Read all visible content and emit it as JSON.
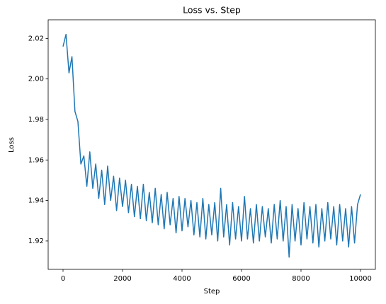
{
  "chart_data": {
    "type": "line",
    "title": "Loss vs. Step",
    "x_label": "Step",
    "y_label": "Loss",
    "color": "#1f77b4",
    "x": [
      0,
      100,
      200,
      300,
      400,
      500,
      600,
      700,
      800,
      900,
      1000,
      1100,
      1200,
      1300,
      1400,
      1500,
      1600,
      1700,
      1800,
      1900,
      2000,
      2100,
      2200,
      2300,
      2400,
      2500,
      2600,
      2700,
      2800,
      2900,
      3000,
      3100,
      3200,
      3300,
      3400,
      3500,
      3600,
      3700,
      3800,
      3900,
      4000,
      4100,
      4200,
      4300,
      4400,
      4500,
      4600,
      4700,
      4800,
      4900,
      5000,
      5100,
      5200,
      5300,
      5400,
      5500,
      5600,
      5700,
      5800,
      5900,
      6000,
      6100,
      6200,
      6300,
      6400,
      6500,
      6600,
      6700,
      6800,
      6900,
      7000,
      7100,
      7200,
      7300,
      7400,
      7500,
      7600,
      7700,
      7800,
      7900,
      8000,
      8100,
      8200,
      8300,
      8400,
      8500,
      8600,
      8700,
      8800,
      8900,
      9000,
      9100,
      9200,
      9300,
      9400,
      9500,
      9600,
      9700,
      9800,
      9900,
      10000
    ],
    "values": [
      2.016,
      2.022,
      2.003,
      2.011,
      1.984,
      1.979,
      1.958,
      1.962,
      1.947,
      1.964,
      1.946,
      1.958,
      1.941,
      1.955,
      1.938,
      1.957,
      1.94,
      1.952,
      1.935,
      1.951,
      1.937,
      1.95,
      1.934,
      1.948,
      1.932,
      1.947,
      1.931,
      1.948,
      1.93,
      1.944,
      1.929,
      1.946,
      1.928,
      1.943,
      1.926,
      1.944,
      1.928,
      1.941,
      1.924,
      1.942,
      1.925,
      1.941,
      1.927,
      1.94,
      1.923,
      1.939,
      1.922,
      1.941,
      1.921,
      1.938,
      1.923,
      1.939,
      1.92,
      1.946,
      1.922,
      1.938,
      1.918,
      1.939,
      1.921,
      1.937,
      1.92,
      1.942,
      1.921,
      1.936,
      1.919,
      1.938,
      1.92,
      1.937,
      1.922,
      1.936,
      1.919,
      1.938,
      1.921,
      1.94,
      1.92,
      1.937,
      1.912,
      1.938,
      1.92,
      1.936,
      1.918,
      1.939,
      1.921,
      1.937,
      1.919,
      1.938,
      1.917,
      1.936,
      1.92,
      1.939,
      1.921,
      1.937,
      1.918,
      1.938,
      1.92,
      1.936,
      1.917,
      1.937,
      1.919,
      1.938,
      1.943
    ],
    "xlim": [
      -500,
      10500
    ],
    "xticks": [
      0,
      2000,
      4000,
      6000,
      8000,
      10000
    ],
    "ylim": [
      1.906,
      2.0292
    ],
    "yticks": [
      1.92,
      1.94,
      1.96,
      1.98,
      {
        "value": 2,
        "label": "2.00"
      },
      2.02
    ]
  }
}
